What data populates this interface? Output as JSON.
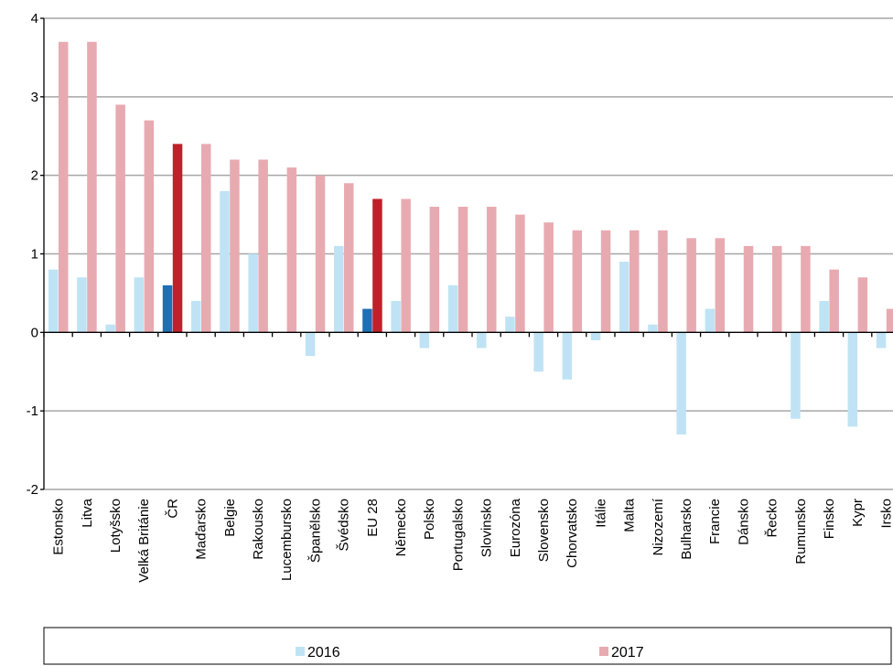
{
  "chart_data": {
    "type": "bar",
    "categories": [
      "Estonsko",
      "Litva",
      "Lotyšsko",
      "Velká Británie",
      "ČR",
      "Maďarsko",
      "Belgie",
      "Rakousko",
      "Lucembursko",
      "Španělsko",
      "Švédsko",
      "EU 28",
      "Německo",
      "Polsko",
      "Portugalsko",
      "Slovinsko",
      "Eurozóna",
      "Slovensko",
      "Chorvatsko",
      "Itálie",
      "Malta",
      "Nizozemí",
      "Bulharsko",
      "Francie",
      "Dánsko",
      "Řecko",
      "Rumunsko",
      "Finsko",
      "Kypr",
      "Irsko"
    ],
    "series": [
      {
        "name": "2016",
        "values": [
          0.8,
          0.7,
          0.1,
          0.7,
          0.6,
          0.4,
          1.8,
          1.0,
          0.0,
          -0.3,
          1.1,
          0.3,
          0.4,
          -0.2,
          0.6,
          -0.2,
          0.2,
          -0.5,
          -0.6,
          -0.1,
          0.9,
          0.1,
          -1.3,
          0.3,
          0.0,
          0.0,
          -1.1,
          0.4,
          -1.2,
          -0.2
        ]
      },
      {
        "name": "2017",
        "values": [
          3.7,
          3.7,
          2.9,
          2.7,
          2.4,
          2.4,
          2.2,
          2.2,
          2.1,
          2.0,
          1.9,
          1.7,
          1.7,
          1.6,
          1.6,
          1.6,
          1.5,
          1.4,
          1.3,
          1.3,
          1.3,
          1.3,
          1.2,
          1.2,
          1.1,
          1.1,
          1.1,
          0.8,
          0.7,
          0.3
        ]
      }
    ],
    "ylim": [
      -2,
      4
    ],
    "yticks": [
      "-2",
      "-1",
      "0",
      "1",
      "2",
      "3",
      "4"
    ],
    "grid": true,
    "legend_position": "bottom",
    "colors": {
      "s2016": "#bfe3f5",
      "s2017": "#e8aab1",
      "s2016_highlight": "#1f6fb5",
      "s2017_highlight": "#c0202a",
      "grid": "#a6a6a6",
      "axis": "#000000"
    },
    "highlight_categories": [
      "ČR",
      "EU 28"
    ]
  }
}
